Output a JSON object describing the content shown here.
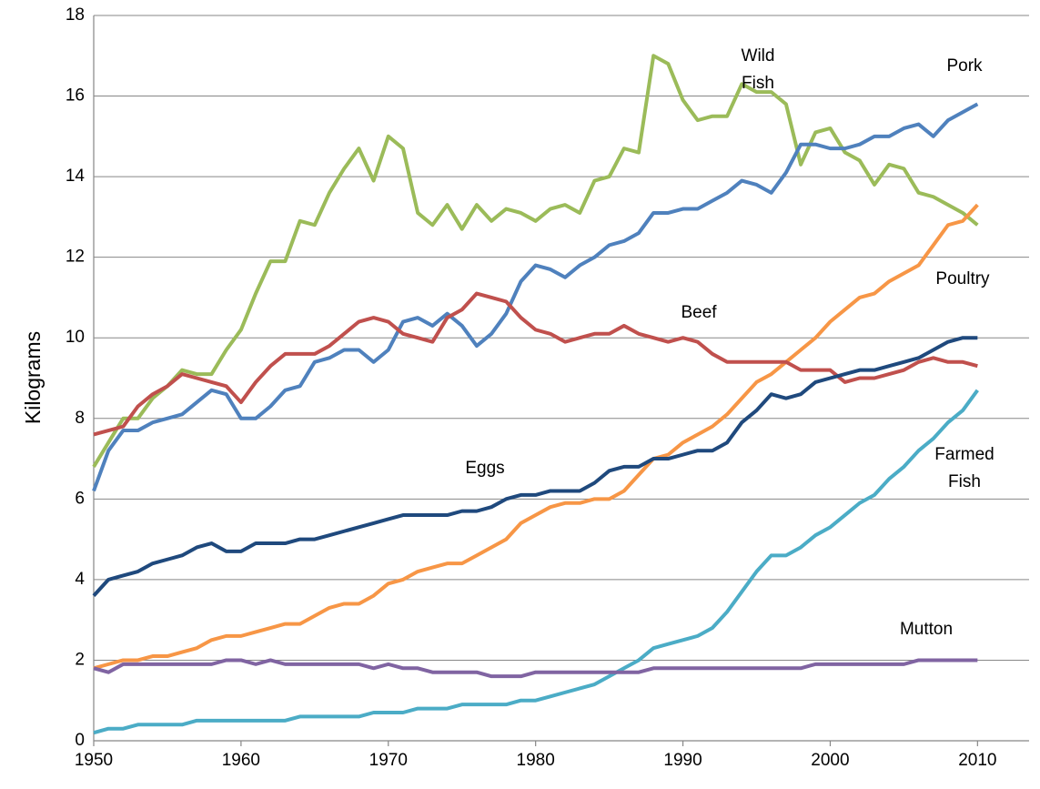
{
  "chart_data": {
    "type": "line",
    "y_label": "Kilograms",
    "x": [
      1950,
      1951,
      1952,
      1953,
      1954,
      1955,
      1956,
      1957,
      1958,
      1959,
      1960,
      1961,
      1962,
      1963,
      1964,
      1965,
      1966,
      1967,
      1968,
      1969,
      1970,
      1971,
      1972,
      1973,
      1974,
      1975,
      1976,
      1977,
      1978,
      1979,
      1980,
      1981,
      1982,
      1983,
      1984,
      1985,
      1986,
      1987,
      1988,
      1989,
      1990,
      1991,
      1992,
      1993,
      1994,
      1995,
      1996,
      1997,
      1998,
      1999,
      2000,
      2001,
      2002,
      2003,
      2004,
      2005,
      2006,
      2007,
      2008,
      2009,
      2010
    ],
    "xlim": [
      1950,
      2013.5
    ],
    "xticks": [
      1950,
      1960,
      1970,
      1980,
      1990,
      2000,
      2010
    ],
    "ylim": [
      0,
      18
    ],
    "yticks": [
      0,
      2,
      4,
      6,
      8,
      10,
      12,
      14,
      16,
      18
    ],
    "grid": true,
    "series": [
      {
        "name": "Wild Fish",
        "color": "#9bbb59",
        "values": [
          6.8,
          7.4,
          8.0,
          8.0,
          8.5,
          8.8,
          9.2,
          9.1,
          9.1,
          9.7,
          10.2,
          11.1,
          11.9,
          11.9,
          12.9,
          12.8,
          13.6,
          14.2,
          14.7,
          13.9,
          15.0,
          14.7,
          13.1,
          12.8,
          13.3,
          12.7,
          13.3,
          12.9,
          13.2,
          13.1,
          12.9,
          13.2,
          13.3,
          13.1,
          13.9,
          14.0,
          14.7,
          14.6,
          17.0,
          16.8,
          15.9,
          15.4,
          15.5,
          15.5,
          16.3,
          16.1,
          16.1,
          15.8,
          14.3,
          15.1,
          15.2,
          14.6,
          14.4,
          13.8,
          14.3,
          14.2,
          13.6,
          13.5,
          13.3,
          13.1,
          12.8
        ]
      },
      {
        "name": "Pork",
        "color": "#4f81bd",
        "values": [
          6.2,
          7.2,
          7.7,
          7.7,
          7.9,
          8.0,
          8.1,
          8.4,
          8.7,
          8.6,
          8.0,
          8.0,
          8.3,
          8.7,
          8.8,
          9.4,
          9.5,
          9.7,
          9.7,
          9.4,
          9.7,
          10.4,
          10.5,
          10.3,
          10.6,
          10.3,
          9.8,
          10.1,
          10.6,
          11.4,
          11.8,
          11.7,
          11.5,
          11.8,
          12.0,
          12.3,
          12.4,
          12.6,
          13.1,
          13.1,
          13.2,
          13.2,
          13.4,
          13.6,
          13.9,
          13.8,
          13.6,
          14.1,
          14.8,
          14.8,
          14.7,
          14.7,
          14.8,
          15.0,
          15.0,
          15.2,
          15.3,
          15.0,
          15.4,
          15.6,
          15.8
        ]
      },
      {
        "name": "Poultry",
        "color": "#f79646",
        "values": [
          1.8,
          1.9,
          2.0,
          2.0,
          2.1,
          2.1,
          2.2,
          2.3,
          2.5,
          2.6,
          2.6,
          2.7,
          2.8,
          2.9,
          2.9,
          3.1,
          3.3,
          3.4,
          3.4,
          3.6,
          3.9,
          4.0,
          4.2,
          4.3,
          4.4,
          4.4,
          4.6,
          4.8,
          5.0,
          5.4,
          5.6,
          5.8,
          5.9,
          5.9,
          6.0,
          6.0,
          6.2,
          6.6,
          7.0,
          7.1,
          7.4,
          7.6,
          7.8,
          8.1,
          8.5,
          8.9,
          9.1,
          9.4,
          9.7,
          10.0,
          10.4,
          10.7,
          11.0,
          11.1,
          11.4,
          11.6,
          11.8,
          12.3,
          12.8,
          12.9,
          13.3
        ]
      },
      {
        "name": "Beef",
        "color": "#c0504d",
        "values": [
          7.6,
          7.7,
          7.8,
          8.3,
          8.6,
          8.8,
          9.1,
          9.0,
          8.9,
          8.8,
          8.4,
          8.9,
          9.3,
          9.6,
          9.6,
          9.6,
          9.8,
          10.1,
          10.4,
          10.5,
          10.4,
          10.1,
          10.0,
          9.9,
          10.5,
          10.7,
          11.1,
          11.0,
          10.9,
          10.5,
          10.2,
          10.1,
          9.9,
          10.0,
          10.1,
          10.1,
          10.3,
          10.1,
          10.0,
          9.9,
          10.0,
          9.9,
          9.6,
          9.4,
          9.4,
          9.4,
          9.4,
          9.4,
          9.2,
          9.2,
          9.2,
          8.9,
          9.0,
          9.0,
          9.1,
          9.2,
          9.4,
          9.5,
          9.4,
          9.4,
          9.3
        ]
      },
      {
        "name": "Eggs",
        "color": "#1f497d",
        "values": [
          3.6,
          4.0,
          4.1,
          4.2,
          4.4,
          4.5,
          4.6,
          4.8,
          4.9,
          4.7,
          4.7,
          4.9,
          4.9,
          4.9,
          5.0,
          5.0,
          5.1,
          5.2,
          5.3,
          5.4,
          5.5,
          5.6,
          5.6,
          5.6,
          5.6,
          5.7,
          5.7,
          5.8,
          6.0,
          6.1,
          6.1,
          6.2,
          6.2,
          6.2,
          6.4,
          6.7,
          6.8,
          6.8,
          7.0,
          7.0,
          7.1,
          7.2,
          7.2,
          7.4,
          7.9,
          8.2,
          8.6,
          8.5,
          8.6,
          8.9,
          9.0,
          9.1,
          9.2,
          9.2,
          9.3,
          9.4,
          9.5,
          9.7,
          9.9,
          10.0,
          10.0
        ]
      },
      {
        "name": "Farmed Fish",
        "color": "#4bacc6",
        "values": [
          0.2,
          0.3,
          0.3,
          0.4,
          0.4,
          0.4,
          0.4,
          0.5,
          0.5,
          0.5,
          0.5,
          0.5,
          0.5,
          0.5,
          0.6,
          0.6,
          0.6,
          0.6,
          0.6,
          0.7,
          0.7,
          0.7,
          0.8,
          0.8,
          0.8,
          0.9,
          0.9,
          0.9,
          0.9,
          1.0,
          1.0,
          1.1,
          1.2,
          1.3,
          1.4,
          1.6,
          1.8,
          2.0,
          2.3,
          2.4,
          2.5,
          2.6,
          2.8,
          3.2,
          3.7,
          4.2,
          4.6,
          4.6,
          4.8,
          5.1,
          5.3,
          5.6,
          5.9,
          6.1,
          6.5,
          6.8,
          7.2,
          7.5,
          7.9,
          8.2,
          8.7
        ]
      },
      {
        "name": "Mutton",
        "color": "#8064a2",
        "values": [
          1.8,
          1.7,
          1.9,
          1.9,
          1.9,
          1.9,
          1.9,
          1.9,
          1.9,
          2.0,
          2.0,
          1.9,
          2.0,
          1.9,
          1.9,
          1.9,
          1.9,
          1.9,
          1.9,
          1.8,
          1.9,
          1.8,
          1.8,
          1.7,
          1.7,
          1.7,
          1.7,
          1.6,
          1.6,
          1.6,
          1.7,
          1.7,
          1.7,
          1.7,
          1.7,
          1.7,
          1.7,
          1.7,
          1.8,
          1.8,
          1.8,
          1.8,
          1.8,
          1.8,
          1.8,
          1.8,
          1.8,
          1.8,
          1.8,
          1.9,
          1.9,
          1.9,
          1.9,
          1.9,
          1.9,
          1.9,
          2.0,
          2.0,
          2.0,
          2.0,
          2.0
        ]
      }
    ]
  }
}
